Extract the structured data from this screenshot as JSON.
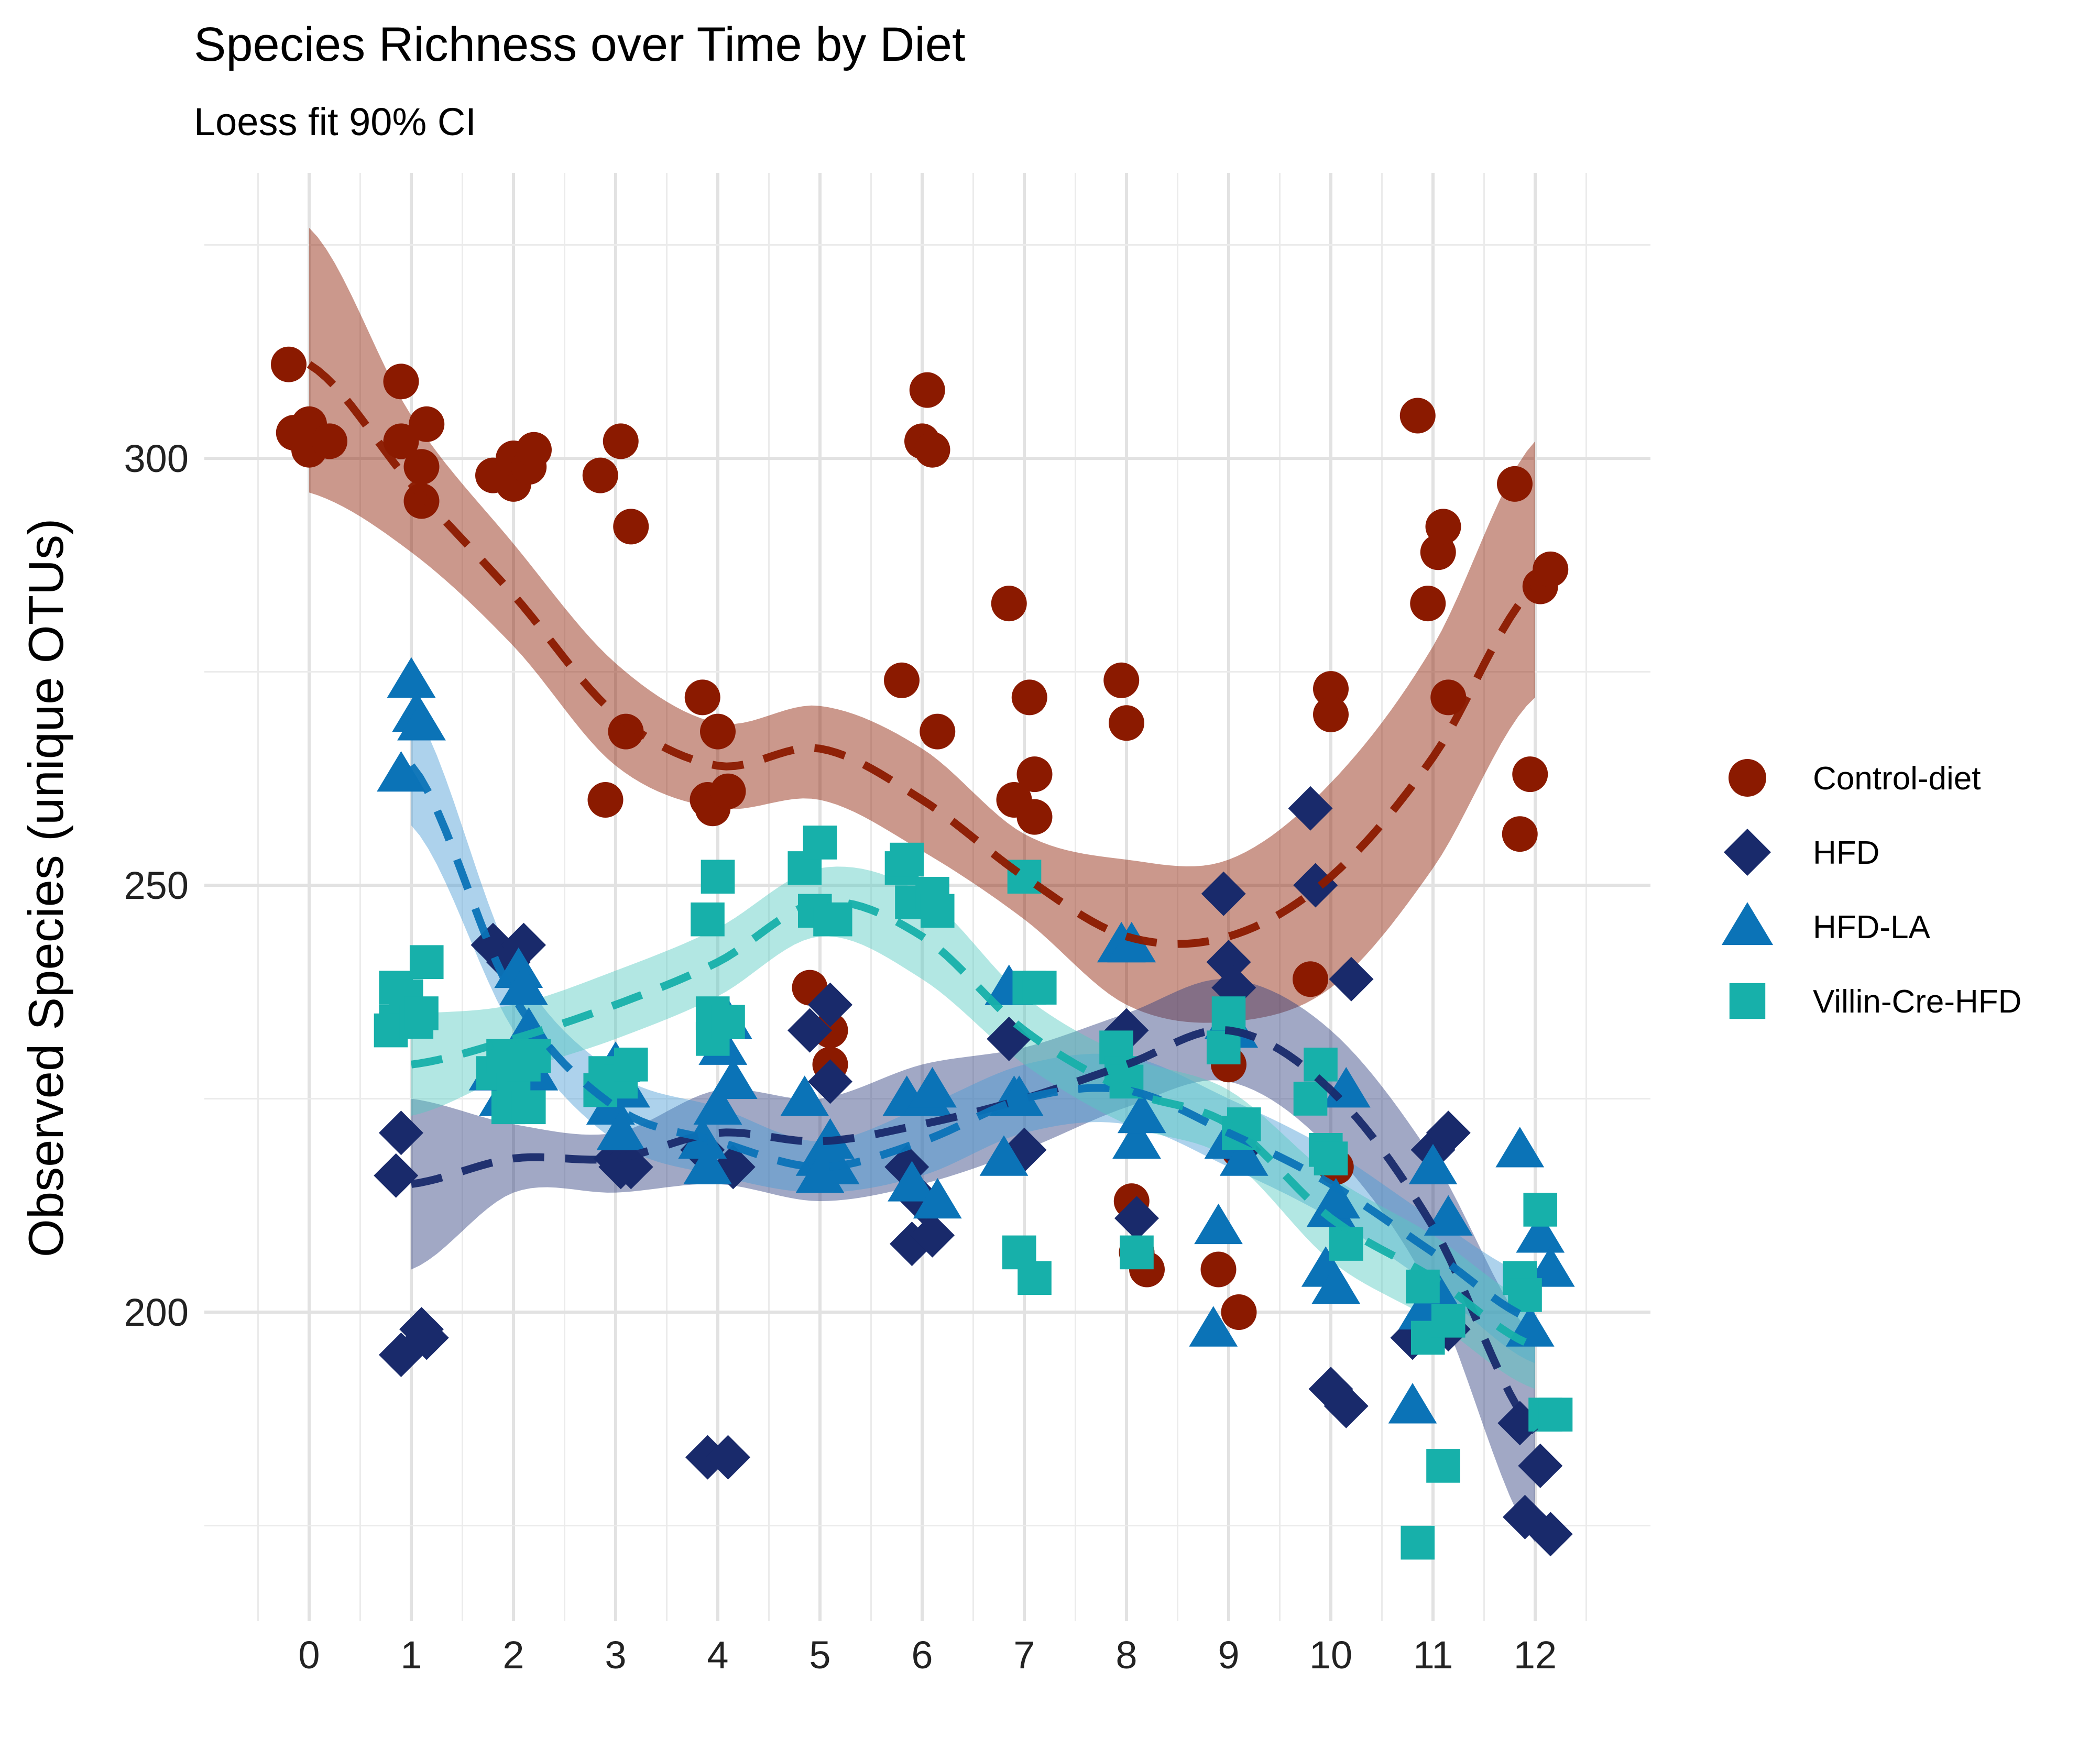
{
  "chart_data": {
    "type": "scatter",
    "title": "Species Richness over Time by Diet",
    "subtitle": "Loess fit 90% CI",
    "xlabel": "",
    "ylabel": "Observed Species (unique OTUs)",
    "x_ticks": [
      "0",
      "1",
      "2",
      "3",
      "4",
      "5",
      "6",
      "7",
      "8",
      "9",
      "10",
      "11",
      "12"
    ],
    "y_ticks": [
      "200",
      "250",
      "300"
    ],
    "xlim": [
      -1.0,
      13.0
    ],
    "ylim": [
      167,
      327
    ],
    "grid": true,
    "legend_position": "right",
    "series": [
      {
        "name": "Control-diet",
        "shape": "circle",
        "color": "#8B1A00",
        "band_color": "#8B1A00",
        "points": [
          [
            -0.2,
            311
          ],
          [
            -0.15,
            303
          ],
          [
            0,
            304
          ],
          [
            0,
            301
          ],
          [
            0.2,
            302
          ],
          [
            0.9,
            302
          ],
          [
            0.9,
            309
          ],
          [
            1.1,
            295
          ],
          [
            1.1,
            299
          ],
          [
            1.15,
            304
          ],
          [
            1.8,
            298
          ],
          [
            2,
            297
          ],
          [
            2,
            300
          ],
          [
            2.15,
            299
          ],
          [
            2.2,
            301
          ],
          [
            2.85,
            298
          ],
          [
            2.9,
            260
          ],
          [
            3.05,
            302
          ],
          [
            3.1,
            268
          ],
          [
            3.15,
            292
          ],
          [
            3.85,
            272
          ],
          [
            3.9,
            260
          ],
          [
            3.95,
            259
          ],
          [
            4,
            268
          ],
          [
            4.1,
            261
          ],
          [
            4.9,
            238
          ],
          [
            5.1,
            229
          ],
          [
            5.1,
            233
          ],
          [
            5.8,
            274
          ],
          [
            6,
            302
          ],
          [
            6.05,
            308
          ],
          [
            6.1,
            301
          ],
          [
            6.15,
            268
          ],
          [
            6.85,
            283
          ],
          [
            6.9,
            260
          ],
          [
            7.05,
            272
          ],
          [
            7.1,
            263
          ],
          [
            7.1,
            258
          ],
          [
            7.95,
            274
          ],
          [
            8,
            269
          ],
          [
            8.05,
            213
          ],
          [
            8.1,
            207
          ],
          [
            8.2,
            205
          ],
          [
            8.9,
            205
          ],
          [
            9,
            229
          ],
          [
            9.1,
            200
          ],
          [
            9.1,
            219
          ],
          [
            9.8,
            239
          ],
          [
            10,
            273
          ],
          [
            10,
            270
          ],
          [
            10.05,
            217
          ],
          [
            10.85,
            305
          ],
          [
            10.95,
            283
          ],
          [
            11.05,
            289
          ],
          [
            11.1,
            292
          ],
          [
            11.15,
            272
          ],
          [
            11.8,
            297
          ],
          [
            11.85,
            256
          ],
          [
            11.95,
            263
          ],
          [
            12.05,
            285
          ],
          [
            12.15,
            287
          ]
        ],
        "fit_x": [
          0,
          1,
          2,
          3,
          4,
          5,
          6,
          7,
          8,
          9,
          10,
          11,
          12
        ],
        "fit_y": [
          311,
          297,
          284,
          270,
          264,
          266,
          260,
          251,
          244,
          244,
          251,
          265,
          285
        ],
        "ci_lower": [
          296,
          289,
          278,
          264,
          259,
          260,
          254,
          246,
          236,
          234,
          238,
          252,
          272
        ],
        "ci_upper": [
          327,
          305,
          290,
          276,
          269,
          271,
          266,
          256,
          253,
          253,
          262,
          278,
          302
        ]
      },
      {
        "name": "HFD",
        "shape": "diamond",
        "color": "#192A6B",
        "band_color": "#2E3F7F",
        "points": [
          [
            0.85,
            216
          ],
          [
            0.9,
            221
          ],
          [
            0.9,
            195
          ],
          [
            1.1,
            198
          ],
          [
            1.15,
            197
          ],
          [
            1.8,
            243
          ],
          [
            1.95,
            241
          ],
          [
            2.1,
            243
          ],
          [
            3,
            218
          ],
          [
            3.05,
            217
          ],
          [
            3.15,
            217
          ],
          [
            3.85,
            219
          ],
          [
            3.9,
            183
          ],
          [
            4.1,
            183
          ],
          [
            4.15,
            217
          ],
          [
            4.9,
            233
          ],
          [
            5.1,
            236
          ],
          [
            5.1,
            227
          ],
          [
            5.85,
            217
          ],
          [
            5.9,
            208
          ],
          [
            6,
            213
          ],
          [
            6.1,
            209
          ],
          [
            6.85,
            232
          ],
          [
            7,
            219
          ],
          [
            8,
            233
          ],
          [
            8.1,
            211
          ],
          [
            8.95,
            249
          ],
          [
            9,
            241
          ],
          [
            9.05,
            238
          ],
          [
            9.1,
            219
          ],
          [
            9.8,
            259
          ],
          [
            9.85,
            250
          ],
          [
            10,
            191
          ],
          [
            10.15,
            189
          ],
          [
            10.2,
            239
          ],
          [
            10.8,
            197
          ],
          [
            11,
            219
          ],
          [
            11.15,
            221
          ],
          [
            11.15,
            198
          ],
          [
            11.85,
            187
          ],
          [
            11.9,
            176
          ],
          [
            12.05,
            182
          ],
          [
            12.15,
            174
          ]
        ],
        "fit_x": [
          1,
          2,
          3,
          4,
          5,
          6,
          7,
          8,
          9,
          10,
          11,
          12
        ],
        "fit_y": [
          215,
          218,
          218,
          221,
          220,
          222,
          225,
          229,
          233,
          226,
          210,
          186
        ],
        "ci_lower": [
          205,
          214,
          214,
          215,
          213,
          215,
          219,
          224,
          227,
          219,
          202,
          173
        ],
        "ci_upper": [
          225,
          222,
          221,
          226,
          225,
          229,
          231,
          235,
          239,
          233,
          218,
          197
        ]
      },
      {
        "name": "HFD-LA",
        "shape": "triangle",
        "color": "#0B73B7",
        "band_color": "#4A9BD5",
        "points": [
          [
            0.9,
            263
          ],
          [
            1,
            274
          ],
          [
            1.05,
            270
          ],
          [
            1.1,
            269
          ],
          [
            1.8,
            228
          ],
          [
            1.9,
            225
          ],
          [
            2.05,
            240
          ],
          [
            2.1,
            238
          ],
          [
            2.15,
            233
          ],
          [
            2.2,
            228
          ],
          [
            2.95,
            224
          ],
          [
            3.05,
            221
          ],
          [
            3,
            229
          ],
          [
            3.1,
            226
          ],
          [
            3.85,
            220
          ],
          [
            3.9,
            217
          ],
          [
            4,
            224
          ],
          [
            4.05,
            231
          ],
          [
            4.1,
            234
          ],
          [
            4.15,
            227
          ],
          [
            4.85,
            225
          ],
          [
            5,
            218
          ],
          [
            5,
            216
          ],
          [
            5.05,
            217
          ],
          [
            5.1,
            220
          ],
          [
            5.15,
            217
          ],
          [
            5.85,
            225
          ],
          [
            5.9,
            215
          ],
          [
            6.05,
            225
          ],
          [
            6.1,
            226
          ],
          [
            6.15,
            213
          ],
          [
            6.8,
            218
          ],
          [
            6.85,
            238
          ],
          [
            6.9,
            225
          ],
          [
            6.95,
            225
          ],
          [
            7.95,
            243
          ],
          [
            8.05,
            243
          ],
          [
            8.1,
            220
          ],
          [
            8.15,
            223
          ],
          [
            8.85,
            198
          ],
          [
            8.9,
            210
          ],
          [
            9,
            234
          ],
          [
            9,
            220
          ],
          [
            9.05,
            233
          ],
          [
            9.15,
            218
          ],
          [
            9.95,
            205
          ],
          [
            10,
            212
          ],
          [
            10.05,
            213
          ],
          [
            10.05,
            203
          ],
          [
            10.15,
            226
          ],
          [
            10.8,
            189
          ],
          [
            10.9,
            200
          ],
          [
            11,
            217
          ],
          [
            11.05,
            202
          ],
          [
            11.15,
            211
          ],
          [
            11.85,
            219
          ],
          [
            11.95,
            198
          ],
          [
            12.05,
            209
          ],
          [
            12.15,
            205
          ]
        ],
        "fit_x": [
          1,
          2,
          3,
          4,
          5,
          6,
          7,
          8,
          9,
          10,
          11,
          12
        ],
        "fit_y": [
          264,
          237,
          224,
          220,
          217,
          220,
          225,
          226,
          221,
          215,
          207,
          199
        ],
        "ci_lower": [
          257,
          233,
          220,
          216,
          214,
          216,
          221,
          222,
          217,
          211,
          203,
          194
        ],
        "ci_upper": [
          271,
          241,
          228,
          224,
          220,
          224,
          229,
          230,
          225,
          219,
          211,
          204
        ]
      },
      {
        "name": "Villin-Cre-HFD",
        "shape": "square",
        "color": "#17B0AA",
        "band_color": "#55C9C2",
        "points": [
          [
            0.8,
            233
          ],
          [
            0.85,
            234
          ],
          [
            0.85,
            238
          ],
          [
            0.95,
            237
          ],
          [
            1.05,
            234
          ],
          [
            1.1,
            235
          ],
          [
            1.15,
            241
          ],
          [
            1.8,
            228
          ],
          [
            1.9,
            230
          ],
          [
            1.95,
            224
          ],
          [
            2,
            226
          ],
          [
            2.1,
            229
          ],
          [
            2.15,
            224
          ],
          [
            2.2,
            230
          ],
          [
            2.85,
            226
          ],
          [
            2.9,
            228
          ],
          [
            3.05,
            227
          ],
          [
            3.15,
            229
          ],
          [
            3.9,
            246
          ],
          [
            3.95,
            232
          ],
          [
            3.95,
            235
          ],
          [
            4,
            251
          ],
          [
            4.1,
            234
          ],
          [
            4.85,
            252
          ],
          [
            4.95,
            247
          ],
          [
            5,
            255
          ],
          [
            5.1,
            246
          ],
          [
            5.15,
            246
          ],
          [
            5.8,
            252
          ],
          [
            5.85,
            253
          ],
          [
            5.9,
            248
          ],
          [
            6.1,
            249
          ],
          [
            6.15,
            247
          ],
          [
            6.95,
            207
          ],
          [
            7,
            251
          ],
          [
            7.05,
            238
          ],
          [
            7.1,
            204
          ],
          [
            7.15,
            238
          ],
          [
            7.9,
            231
          ],
          [
            7.95,
            228
          ],
          [
            8,
            227
          ],
          [
            8.1,
            207
          ],
          [
            8.95,
            231
          ],
          [
            9,
            235
          ],
          [
            9.1,
            221
          ],
          [
            9.15,
            222
          ],
          [
            9.8,
            225
          ],
          [
            9.9,
            229
          ],
          [
            9.95,
            219
          ],
          [
            10,
            218
          ],
          [
            10.15,
            208
          ],
          [
            10.85,
            173
          ],
          [
            10.9,
            203
          ],
          [
            10.95,
            197
          ],
          [
            11.1,
            182
          ],
          [
            11.15,
            199
          ],
          [
            11.85,
            204
          ],
          [
            11.9,
            202
          ],
          [
            12.05,
            212
          ],
          [
            12.1,
            188
          ],
          [
            12.2,
            188
          ]
        ],
        "fit_x": [
          1,
          2,
          3,
          4,
          5,
          6,
          7,
          8,
          9,
          10,
          11,
          12
        ],
        "fit_y": [
          229,
          232,
          236,
          241,
          248,
          244,
          233,
          226,
          222,
          211,
          204,
          196
        ],
        "ci_lower": [
          223,
          228,
          232,
          237,
          244,
          239,
          229,
          222,
          218,
          206,
          199,
          191
        ],
        "ci_upper": [
          235,
          236,
          240,
          245,
          252,
          249,
          237,
          230,
          226,
          216,
          209,
          201
        ]
      }
    ]
  }
}
